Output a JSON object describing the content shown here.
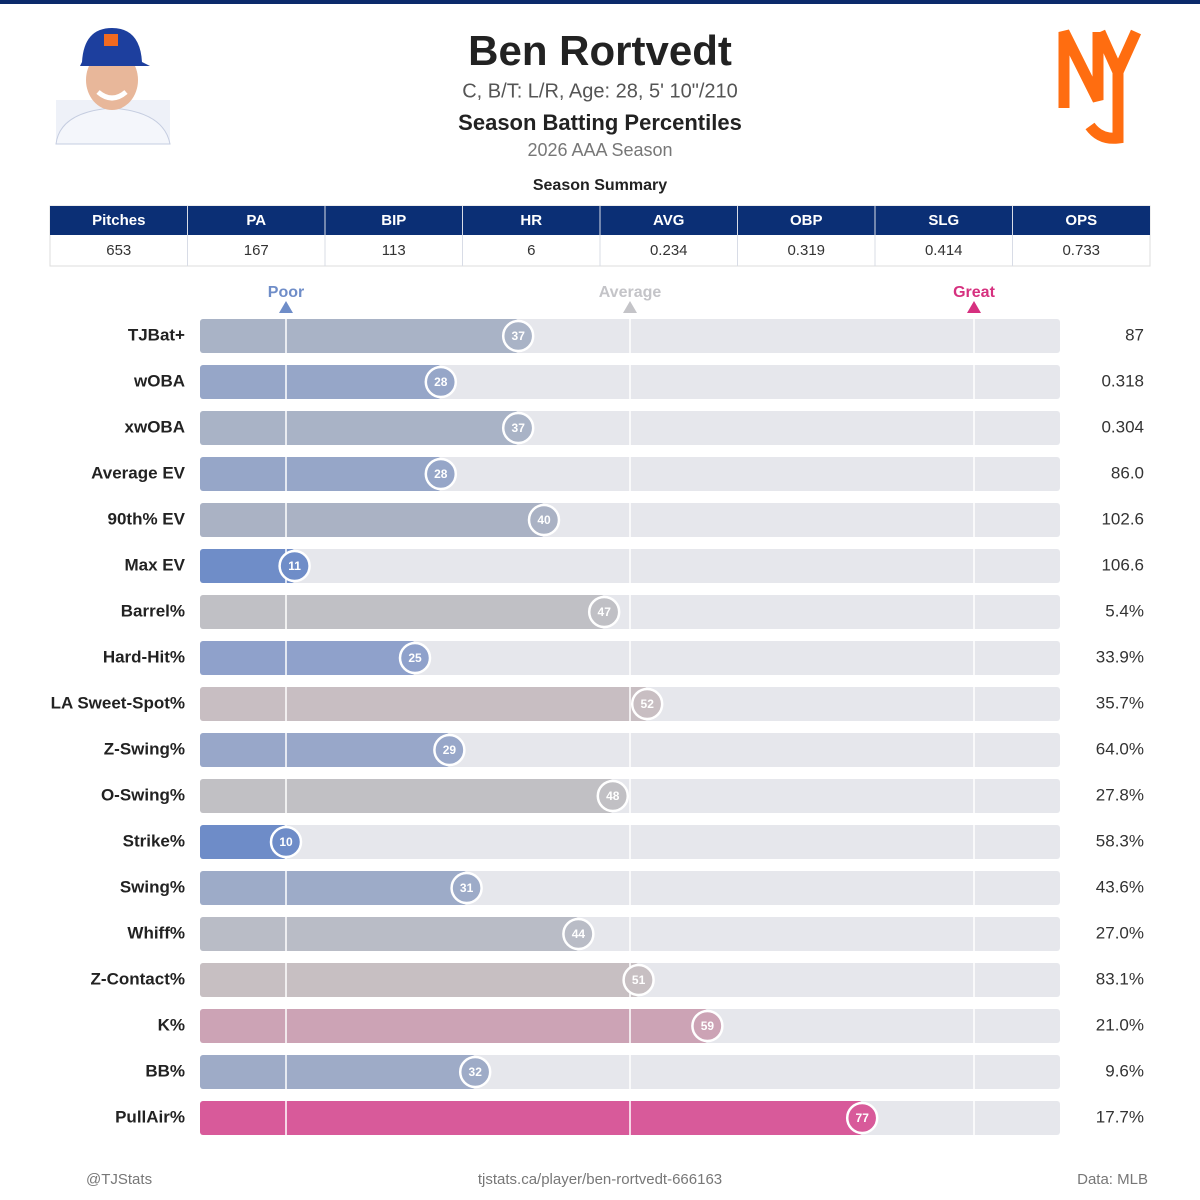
{
  "header": {
    "title": "Ben Rortvedt",
    "subtitle": "C, B/T: L/R, Age: 28, 5' 10\"/210",
    "heading": "Season Batting Percentiles",
    "season": "2026 AAA Season"
  },
  "summary": {
    "title": "Season Summary",
    "columns": [
      "Pitches",
      "PA",
      "BIP",
      "HR",
      "AVG",
      "OBP",
      "SLG",
      "OPS"
    ],
    "values": [
      653,
      167,
      113,
      6,
      0.234,
      0.319,
      0.414,
      0.733
    ]
  },
  "chart_data": {
    "type": "bar",
    "categories": [
      "TJBat+",
      "wOBA",
      "xwOBA",
      "Average EV",
      "90th% EV",
      "Max EV",
      "Barrel%",
      "Hard-Hit%",
      "LA Sweet-Spot%",
      "Z-Swing%",
      "O-Swing%",
      "Strike%",
      "Swing%",
      "Whiff%",
      "Z-Contact%",
      "K%",
      "BB%",
      "PullAir%"
    ],
    "values": [
      37,
      28,
      37,
      28,
      40,
      11,
      47,
      25,
      52,
      29,
      48,
      10,
      31,
      44,
      51,
      59,
      32,
      77
    ],
    "colors": [
      "#a9b3c6",
      "#96a6c8",
      "#a9b3c6",
      "#96a6c8",
      "#aab2c4",
      "#6f8dc8",
      "#c0c0c5",
      "#8fa1cb",
      "#c8bec2",
      "#98a7c9",
      "#c1c0c4",
      "#6e8cc8",
      "#9dabc8",
      "#b9bcc6",
      "#c7bfc2",
      "#cca3b5",
      "#9eabc7",
      "#d85a9a"
    ],
    "stat_values": [
      "87",
      "0.318",
      "0.304",
      "86.0",
      "102.6",
      "106.6",
      "5.4%",
      "33.9%",
      "35.7%",
      "64.0%",
      "27.8%",
      "58.3%",
      "43.6%",
      "27.0%",
      "83.1%",
      "21.0%",
      "9.6%",
      "17.7%"
    ],
    "xlim": [
      0,
      100
    ],
    "references": [
      {
        "value": 10,
        "label": "Poor",
        "color": "#6f8dc8"
      },
      {
        "value": 50,
        "label": "Average",
        "color": "#c4c4c8"
      },
      {
        "value": 90,
        "label": "Great",
        "color": "#d6307f"
      }
    ]
  },
  "footer": {
    "left": "@TJStats",
    "center": "tjstats.ca/player/ben-rortvedt-666163",
    "right": "Data: MLB"
  }
}
